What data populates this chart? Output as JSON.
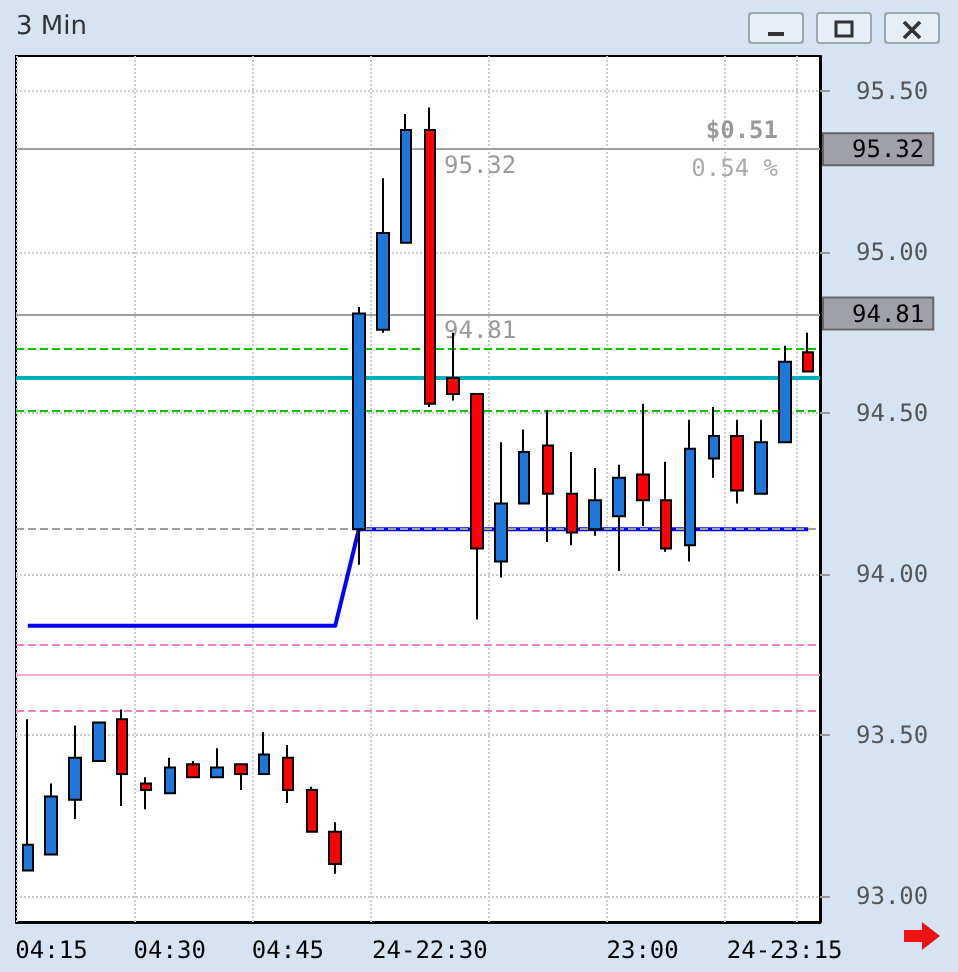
{
  "chart_data": {
    "type": "candlestick",
    "title": "3 Min",
    "categories": [
      null,
      "04:15",
      null,
      null,
      null,
      null,
      "04:30",
      null,
      null,
      null,
      null,
      "04:45",
      null,
      null,
      null,
      null,
      null,
      "24-22:30",
      null,
      null,
      null,
      null,
      null,
      null,
      null,
      null,
      "23:00",
      null,
      null,
      null,
      null,
      null,
      "24-23:15",
      null
    ],
    "ohlc": [
      [
        93.08,
        93.55,
        93.08,
        93.16
      ],
      [
        93.13,
        93.35,
        93.13,
        93.31
      ],
      [
        93.3,
        93.53,
        93.24,
        93.43
      ],
      [
        93.42,
        93.54,
        93.42,
        93.54
      ],
      [
        93.55,
        93.58,
        93.28,
        93.38
      ],
      [
        93.35,
        93.37,
        93.27,
        93.33
      ],
      [
        93.32,
        93.43,
        93.32,
        93.4
      ],
      [
        93.41,
        93.42,
        93.37,
        93.37
      ],
      [
        93.37,
        93.46,
        93.37,
        93.4
      ],
      [
        93.41,
        93.41,
        93.33,
        93.38
      ],
      [
        93.38,
        93.51,
        93.38,
        93.44
      ],
      [
        93.43,
        93.47,
        93.29,
        93.33
      ],
      [
        93.33,
        93.34,
        93.2,
        93.2
      ],
      [
        93.2,
        93.23,
        93.07,
        93.1
      ],
      [
        94.14,
        94.83,
        94.03,
        94.81
      ],
      [
        94.76,
        95.23,
        94.75,
        95.06
      ],
      [
        95.03,
        95.43,
        95.03,
        95.38
      ],
      [
        95.38,
        95.45,
        94.52,
        94.53
      ],
      [
        94.61,
        94.75,
        94.54,
        94.56
      ],
      [
        94.56,
        94.56,
        93.86,
        94.08
      ],
      [
        94.04,
        94.41,
        93.99,
        94.22
      ],
      [
        94.22,
        94.45,
        94.22,
        94.38
      ],
      [
        94.4,
        94.51,
        94.1,
        94.25
      ],
      [
        94.25,
        94.38,
        94.09,
        94.13
      ],
      [
        94.14,
        94.33,
        94.12,
        94.23
      ],
      [
        94.18,
        94.34,
        94.01,
        94.3
      ],
      [
        94.31,
        94.53,
        94.15,
        94.23
      ],
      [
        94.23,
        94.35,
        94.07,
        94.08
      ],
      [
        94.09,
        94.48,
        94.04,
        94.39
      ],
      [
        94.36,
        94.52,
        94.3,
        94.43
      ],
      [
        94.43,
        94.48,
        94.22,
        94.26
      ],
      [
        94.25,
        94.48,
        94.25,
        94.41
      ],
      [
        94.41,
        94.71,
        94.41,
        94.66
      ],
      [
        94.69,
        94.75,
        94.63,
        94.63
      ]
    ],
    "colors": [
      "#1e78dc",
      "#1e78dc",
      "#1e78dc",
      "#1e78dc",
      "#ff0000",
      "#ff0000",
      "#1e78dc",
      "#ff0000",
      "#1e78dc",
      "#ff0000",
      "#1e78dc",
      "#ff0000",
      "#ff0000",
      "#ff0000",
      "#1e78dc",
      "#1e78dc",
      "#1e78dc",
      "#ff0000",
      "#ff0000",
      "#ff0000",
      "#1e78dc",
      "#1e78dc",
      "#ff0000",
      "#ff0000",
      "#1e78dc",
      "#1e78dc",
      "#ff0000",
      "#ff0000",
      "#1e78dc",
      "#1e78dc",
      "#ff0000",
      "#1e78dc",
      "#1e78dc",
      "#ff0000"
    ],
    "series": [
      {
        "type": "line",
        "color": "#0000ff",
        "values": [
          93.84,
          93.84,
          93.84,
          93.84,
          93.84,
          93.84,
          93.84,
          93.84,
          93.84,
          93.84,
          93.84,
          93.84,
          93.84,
          93.84,
          94.14,
          94.14,
          94.14,
          94.14,
          94.14,
          94.14,
          94.14,
          94.14,
          94.14,
          94.14,
          94.14,
          94.14,
          94.14,
          94.14,
          94.14,
          94.14,
          94.14,
          94.14,
          94.14,
          94.14
        ]
      }
    ],
    "ylim": [
      92.92,
      95.61
    ],
    "yticks": [
      {
        "value": 93,
        "label": "93.00"
      },
      {
        "value": 93.5,
        "label": "93.50"
      },
      {
        "value": 94,
        "label": "94.00"
      },
      {
        "value": 94.5,
        "label": "94.50"
      },
      {
        "value": 95,
        "label": "95.00"
      },
      {
        "value": 95.5,
        "label": "95.50"
      }
    ],
    "ref_lines": [
      {
        "axis": "y",
        "value": 95.32,
        "label": "95.32",
        "color": "#a0a0a0",
        "line_style": "solid"
      },
      {
        "axis": "y",
        "value": 94.81,
        "label": "94.81",
        "color": "#a0a0a0",
        "line_style": "solid"
      },
      {
        "axis": "y",
        "value": 94.7,
        "color": "#00c800",
        "line_style": "dashed"
      },
      {
        "axis": "y",
        "value": 94.61,
        "color": "#00b0c0",
        "line_style": "solid"
      },
      {
        "axis": "y",
        "value": 94.51,
        "color": "#00c800",
        "line_style": "dashed"
      },
      {
        "axis": "y",
        "value": 94.14,
        "color": "#a0a0a0",
        "line_style": "dashed"
      },
      {
        "axis": "y",
        "value": 93.78,
        "color": "#f080c0",
        "line_style": "dashed"
      },
      {
        "axis": "y",
        "value": 93.69,
        "color": "#ffa8d8",
        "line_style": "solid"
      },
      {
        "axis": "y",
        "value": 93.58,
        "color": "#f080c0",
        "line_style": "dashed"
      }
    ],
    "annotations": [
      "$0.51",
      "0.54 %",
      "95.32",
      "94.81"
    ],
    "grid": true
  }
}
